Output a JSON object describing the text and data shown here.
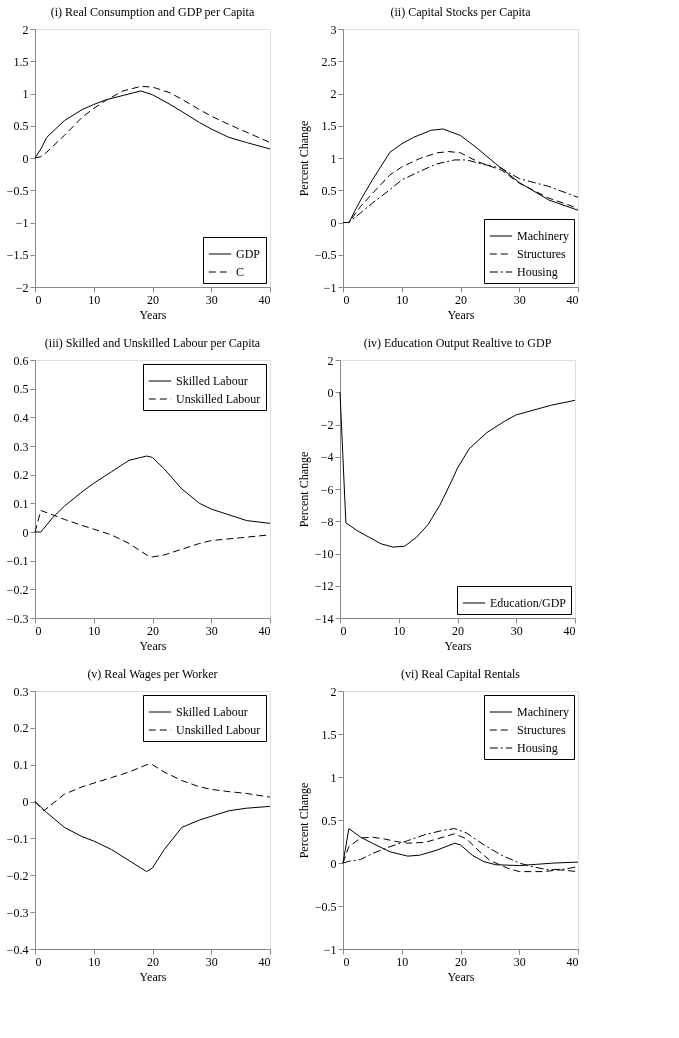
{
  "chart_data": [
    {
      "type": "line",
      "title": "(i) Real Consumption and GDP per Capita",
      "xlabel": "Years",
      "xlim": [
        0,
        40
      ],
      "xticks": [
        0,
        10,
        20,
        30,
        40
      ],
      "ylim": [
        -2,
        2
      ],
      "yticks": [
        -2,
        -1.5,
        -1,
        -0.5,
        0,
        0.5,
        1,
        1.5,
        2
      ],
      "grid": false,
      "legend": "bottom right",
      "series": [
        {
          "name": "GDP",
          "color": "#000000",
          "line_style": "solid",
          "x": [
            0,
            1,
            2,
            5,
            8,
            10,
            12,
            15,
            18,
            20,
            23,
            25,
            28,
            30,
            33,
            36,
            40
          ],
          "values": [
            0,
            0.14,
            0.32,
            0.58,
            0.75,
            0.83,
            0.9,
            0.97,
            1.04,
            0.98,
            0.83,
            0.72,
            0.55,
            0.45,
            0.32,
            0.24,
            0.14
          ]
        },
        {
          "name": "C",
          "color": "#000000",
          "line_style": "dashed",
          "x": [
            0,
            1,
            2,
            5,
            8,
            10,
            12,
            15,
            18,
            20,
            23,
            25,
            28,
            30,
            33,
            36,
            40
          ],
          "values": [
            0,
            0.02,
            0.09,
            0.35,
            0.63,
            0.77,
            0.89,
            1.04,
            1.11,
            1.1,
            1.01,
            0.91,
            0.75,
            0.65,
            0.52,
            0.4,
            0.24
          ]
        }
      ]
    },
    {
      "type": "line",
      "title": "(ii) Capital Stocks per Capita",
      "xlabel": "Years",
      "ylabel": "Percent Change",
      "xlim": [
        0,
        40
      ],
      "xticks": [
        0,
        10,
        20,
        30,
        40
      ],
      "ylim": [
        -1,
        3
      ],
      "yticks": [
        -1,
        -0.5,
        0,
        0.5,
        1,
        1.5,
        2,
        2.5,
        3
      ],
      "grid": false,
      "legend": "bottom right",
      "series": [
        {
          "name": "Machinery",
          "color": "#000000",
          "line_style": "solid",
          "x": [
            0,
            1,
            3,
            5,
            8,
            10,
            12,
            15,
            17,
            20,
            23,
            26,
            30,
            35,
            40
          ],
          "values": [
            0,
            0,
            0.35,
            0.66,
            1.09,
            1.22,
            1.32,
            1.43,
            1.45,
            1.35,
            1.14,
            0.91,
            0.62,
            0.35,
            0.19
          ]
        },
        {
          "name": "Structures",
          "color": "#000000",
          "line_style": "dashed",
          "x": [
            0,
            1,
            3,
            5,
            8,
            10,
            13,
            16,
            18,
            20,
            23,
            27,
            30,
            35,
            40
          ],
          "values": [
            0,
            0,
            0.25,
            0.45,
            0.74,
            0.86,
            0.99,
            1.08,
            1.1,
            1.08,
            0.94,
            0.81,
            0.61,
            0.38,
            0.22
          ]
        },
        {
          "name": "Housing",
          "color": "#000000",
          "line_style": "dashdot",
          "x": [
            0,
            1,
            3,
            5,
            8,
            10,
            13,
            16,
            19,
            21,
            24,
            27,
            30,
            35,
            40
          ],
          "values": [
            0,
            0,
            0.15,
            0.3,
            0.51,
            0.66,
            0.79,
            0.91,
            0.97,
            0.97,
            0.9,
            0.84,
            0.68,
            0.56,
            0.39
          ]
        }
      ]
    },
    {
      "type": "line",
      "title": "(iii) Skilled and Unskilled Labour per Capita",
      "xlabel": "Years",
      "xlim": [
        0,
        40
      ],
      "xticks": [
        0,
        10,
        20,
        30,
        40
      ],
      "ylim": [
        -0.3,
        0.6
      ],
      "yticks": [
        -0.3,
        -0.2,
        -0.1,
        0,
        0.1,
        0.2,
        0.3,
        0.4,
        0.5,
        0.6
      ],
      "grid": false,
      "legend": "top right",
      "series": [
        {
          "name": "Skilled Labour",
          "color": "#000000",
          "line_style": "solid",
          "x": [
            0,
            1,
            3,
            5,
            8,
            10,
            13,
            16,
            18,
            19,
            20,
            22,
            25,
            28,
            30,
            33,
            36,
            40
          ],
          "values": [
            0,
            0,
            0.05,
            0.09,
            0.14,
            0.17,
            0.21,
            0.25,
            0.26,
            0.265,
            0.26,
            0.22,
            0.15,
            0.1,
            0.08,
            0.06,
            0.04,
            0.03
          ]
        },
        {
          "name": "Unskilled Labour",
          "color": "#000000",
          "line_style": "dashed",
          "x": [
            0,
            1,
            3,
            5,
            8,
            10,
            13,
            16,
            19,
            20,
            22,
            25,
            28,
            30,
            35,
            40
          ],
          "values": [
            0,
            0.075,
            0.06,
            0.044,
            0.023,
            0.01,
            -0.01,
            -0.04,
            -0.08,
            -0.087,
            -0.08,
            -0.06,
            -0.04,
            -0.03,
            -0.02,
            -0.01
          ]
        }
      ]
    },
    {
      "type": "line",
      "title": "(iv) Education Output Realtive to GDP",
      "xlabel": "Years",
      "ylabel": "Percent Change",
      "xlim": [
        0,
        40
      ],
      "xticks": [
        0,
        10,
        20,
        30,
        40
      ],
      "ylim": [
        -14,
        2
      ],
      "yticks": [
        -14,
        -12,
        -10,
        -8,
        -6,
        -4,
        -2,
        0,
        2
      ],
      "grid": false,
      "legend": "bottom right",
      "series": [
        {
          "name": "Education/GDP",
          "color": "#000000",
          "line_style": "solid",
          "x": [
            0,
            1,
            3,
            5,
            7,
            9,
            11,
            13,
            15,
            17,
            19,
            20,
            22,
            25,
            28,
            30,
            33,
            36,
            40
          ],
          "values": [
            0,
            -8.1,
            -8.6,
            -9.0,
            -9.4,
            -9.6,
            -9.55,
            -9.0,
            -8.2,
            -7.0,
            -5.5,
            -4.7,
            -3.5,
            -2.5,
            -1.8,
            -1.4,
            -1.1,
            -0.8,
            -0.5
          ]
        }
      ]
    },
    {
      "type": "line",
      "title": "(v) Real Wages per Worker",
      "xlabel": "Years",
      "xlim": [
        0,
        40
      ],
      "xticks": [
        0,
        10,
        20,
        30,
        40
      ],
      "ylim": [
        -0.4,
        0.3
      ],
      "yticks": [
        -0.4,
        -0.3,
        -0.2,
        -0.1,
        0,
        0.1,
        0.2,
        0.3
      ],
      "grid": false,
      "legend": "top right",
      "series": [
        {
          "name": "Skilled Labour",
          "color": "#000000",
          "line_style": "solid",
          "x": [
            0,
            2,
            5,
            8,
            10,
            13,
            16,
            18,
            19,
            20,
            22,
            25,
            28,
            30,
            33,
            36,
            40
          ],
          "values": [
            0,
            -0.03,
            -0.07,
            -0.095,
            -0.107,
            -0.13,
            -0.16,
            -0.18,
            -0.19,
            -0.18,
            -0.13,
            -0.07,
            -0.05,
            -0.04,
            -0.025,
            -0.018,
            -0.013
          ]
        },
        {
          "name": "Unskilled Labour",
          "color": "#000000",
          "line_style": "dashed",
          "x": [
            0,
            1.5,
            5,
            8,
            10,
            13,
            16,
            19,
            20,
            22,
            25,
            28,
            30,
            33,
            36,
            40
          ],
          "values": [
            0,
            -0.025,
            0.02,
            0.04,
            0.05,
            0.065,
            0.08,
            0.1,
            0.1,
            0.08,
            0.057,
            0.04,
            0.033,
            0.027,
            0.022,
            0.012
          ]
        }
      ]
    },
    {
      "type": "line",
      "title": "(vi) Real Capital Rentals",
      "xlabel": "Years",
      "ylabel": "Percent Change",
      "xlim": [
        0,
        40
      ],
      "xticks": [
        0,
        10,
        20,
        30,
        40
      ],
      "ylim": [
        -1,
        2
      ],
      "yticks": [
        -1,
        -0.5,
        0,
        0.5,
        1,
        1.5,
        2
      ],
      "grid": false,
      "legend": "top right",
      "series": [
        {
          "name": "Machinery",
          "color": "#000000",
          "line_style": "solid",
          "x": [
            0,
            1,
            3,
            5,
            8,
            11,
            13,
            16,
            19,
            20,
            22,
            24,
            26,
            30,
            33,
            36,
            40
          ],
          "values": [
            0,
            0.4,
            0.3,
            0.23,
            0.13,
            0.08,
            0.09,
            0.15,
            0.23,
            0.21,
            0.09,
            0.015,
            -0.02,
            -0.03,
            -0.015,
            0,
            0.01
          ]
        },
        {
          "name": "Structures",
          "color": "#000000",
          "line_style": "dashed",
          "x": [
            0,
            1,
            3,
            5,
            7,
            9,
            11,
            14,
            17,
            19,
            21,
            23,
            25,
            28,
            30,
            34,
            37,
            40
          ],
          "values": [
            0,
            0.19,
            0.29,
            0.3,
            0.28,
            0.25,
            0.23,
            0.24,
            0.3,
            0.34,
            0.28,
            0.15,
            0.03,
            -0.06,
            -0.1,
            -0.1,
            -0.08,
            -0.1
          ]
        },
        {
          "name": "Housing",
          "color": "#000000",
          "line_style": "dashdot",
          "x": [
            0,
            1,
            3,
            5,
            8,
            11,
            14,
            17,
            19,
            21,
            24,
            27,
            30,
            32,
            35,
            38,
            40
          ],
          "values": [
            0,
            0.02,
            0.04,
            0.11,
            0.19,
            0.26,
            0.33,
            0.38,
            0.4,
            0.35,
            0.21,
            0.09,
            0,
            -0.04,
            -0.08,
            -0.07,
            -0.04
          ]
        }
      ]
    }
  ]
}
